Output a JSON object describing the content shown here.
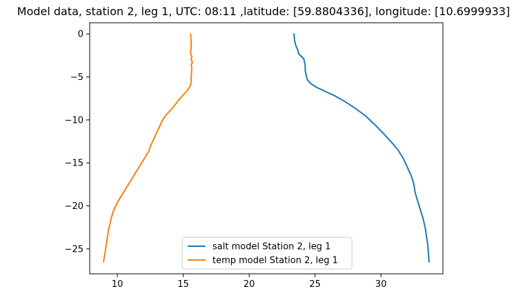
{
  "chart_data": {
    "type": "line",
    "title": "Model data, station 2, leg 1, UTC: 08:11 ,latitude: [59.8804336], longitude: [10.6999933]",
    "xlabel": "",
    "ylabel": "",
    "xlim": [
      7.9,
      34.7
    ],
    "ylim": [
      -27.9,
      1.3
    ],
    "xticks": [
      10,
      15,
      20,
      25,
      30
    ],
    "yticks": [
      0,
      -5,
      -10,
      -15,
      -20,
      -25
    ],
    "xtick_labels": [
      "10",
      "15",
      "20",
      "25",
      "30"
    ],
    "ytick_labels": [
      "0",
      "−5",
      "−10",
      "−15",
      "−20",
      "−25"
    ],
    "grid": false,
    "legend_position": "bottom-center",
    "series": [
      {
        "name": "salt model Station 2, leg 1",
        "color": "#1f77b4",
        "points": [
          [
            23.4,
            0
          ],
          [
            23.45,
            -0.8
          ],
          [
            23.55,
            -1.4
          ],
          [
            23.7,
            -1.9
          ],
          [
            23.75,
            -2.3
          ],
          [
            23.95,
            -2.6
          ],
          [
            24.15,
            -2.9
          ],
          [
            24.2,
            -3.3
          ],
          [
            24.25,
            -3.6
          ],
          [
            24.25,
            -4.2
          ],
          [
            24.3,
            -4.6
          ],
          [
            24.35,
            -5.0
          ],
          [
            24.45,
            -5.4
          ],
          [
            24.7,
            -5.8
          ],
          [
            25.1,
            -6.2
          ],
          [
            25.8,
            -6.7
          ],
          [
            26.5,
            -7.2
          ],
          [
            27.2,
            -7.8
          ],
          [
            28.0,
            -8.6
          ],
          [
            28.8,
            -9.5
          ],
          [
            29.5,
            -10.5
          ],
          [
            30.2,
            -11.6
          ],
          [
            30.8,
            -12.6
          ],
          [
            31.3,
            -13.5
          ],
          [
            31.7,
            -14.5
          ],
          [
            32.0,
            -15.5
          ],
          [
            32.3,
            -16.5
          ],
          [
            32.5,
            -17.5
          ],
          [
            32.6,
            -18.5
          ],
          [
            32.8,
            -19.5
          ],
          [
            33.0,
            -20.5
          ],
          [
            33.2,
            -21.5
          ],
          [
            33.35,
            -22.5
          ],
          [
            33.45,
            -23.5
          ],
          [
            33.55,
            -24.5
          ],
          [
            33.6,
            -25.5
          ],
          [
            33.65,
            -26.5
          ]
        ]
      },
      {
        "name": "temp model Station 2, leg 1",
        "color": "#ff7f0e",
        "points": [
          [
            15.55,
            0
          ],
          [
            15.6,
            -0.8
          ],
          [
            15.6,
            -1.6
          ],
          [
            15.55,
            -2.3
          ],
          [
            15.65,
            -2.6
          ],
          [
            15.6,
            -3.0
          ],
          [
            15.7,
            -3.3
          ],
          [
            15.6,
            -3.6
          ],
          [
            15.65,
            -4.0
          ],
          [
            15.6,
            -5.0
          ],
          [
            15.6,
            -5.5
          ],
          [
            15.55,
            -6.0
          ],
          [
            15.3,
            -6.6
          ],
          [
            15.0,
            -7.1
          ],
          [
            14.7,
            -7.6
          ],
          [
            14.45,
            -8.1
          ],
          [
            14.2,
            -8.6
          ],
          [
            13.9,
            -9.1
          ],
          [
            13.6,
            -9.6
          ],
          [
            13.4,
            -10.1
          ],
          [
            13.25,
            -10.6
          ],
          [
            13.1,
            -11.1
          ],
          [
            12.95,
            -11.6
          ],
          [
            12.8,
            -12.1
          ],
          [
            12.65,
            -12.6
          ],
          [
            12.5,
            -13.1
          ],
          [
            12.4,
            -13.6
          ],
          [
            12.2,
            -14.1
          ],
          [
            12.0,
            -14.6
          ],
          [
            11.8,
            -15.1
          ],
          [
            11.6,
            -15.6
          ],
          [
            11.4,
            -16.1
          ],
          [
            11.2,
            -16.6
          ],
          [
            11.0,
            -17.1
          ],
          [
            10.8,
            -17.6
          ],
          [
            10.6,
            -18.1
          ],
          [
            10.4,
            -18.6
          ],
          [
            10.2,
            -19.1
          ],
          [
            10.0,
            -19.6
          ],
          [
            9.85,
            -20.1
          ],
          [
            9.7,
            -20.6
          ],
          [
            9.6,
            -21.1
          ],
          [
            9.5,
            -21.6
          ],
          [
            9.45,
            -22.1
          ],
          [
            9.35,
            -22.6
          ],
          [
            9.3,
            -23.1
          ],
          [
            9.25,
            -23.6
          ],
          [
            9.2,
            -24.1
          ],
          [
            9.15,
            -24.6
          ],
          [
            9.1,
            -25.1
          ],
          [
            9.05,
            -25.6
          ],
          [
            9.0,
            -26.1
          ],
          [
            8.95,
            -26.5
          ]
        ]
      }
    ]
  }
}
